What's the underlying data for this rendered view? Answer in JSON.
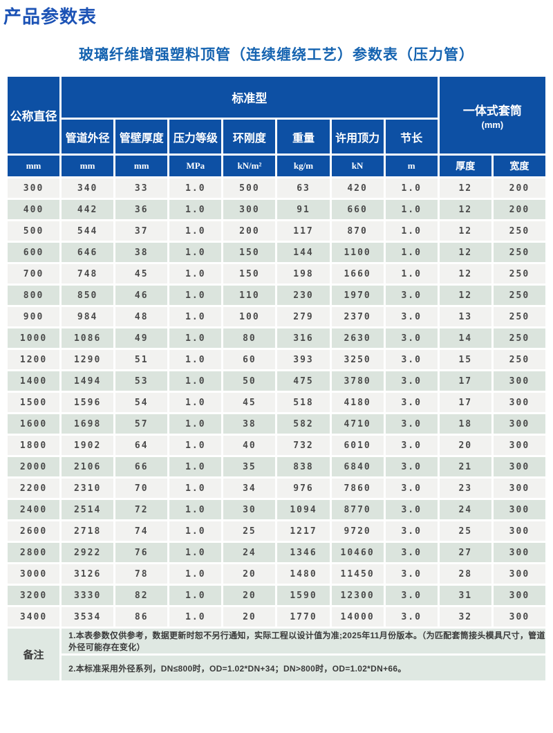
{
  "page": {
    "title": "产品参数表",
    "subtitle": "玻璃纤维增强塑料顶管（连续缠绕工艺）参数表（压力管）"
  },
  "colors": {
    "header_blue": "#0d50a4",
    "title_blue": "#1b52b5",
    "subtitle_blue": "#1563b0",
    "row_light": "#f2f2f0",
    "row_green": "#dbe4dd",
    "remarks_green": "#dfe8e2"
  },
  "chart_data": {
    "type": "table",
    "header": {
      "col_nominal_diameter": "公称直径",
      "group_standard": "标准型",
      "group_sleeve": "一体式套筒",
      "group_sleeve_unit": "(mm)",
      "sub_headers": [
        "管道外径",
        "管壁厚度",
        "压力等级",
        "环刚度",
        "重量",
        "许用顶力",
        "节长"
      ],
      "units": [
        "mm",
        "mm",
        "mm",
        "MPa",
        "kN/m²",
        "kg/m",
        "kN",
        "m",
        "厚度",
        "宽度"
      ]
    },
    "rows": [
      [
        "300",
        "340",
        "33",
        "1.0",
        "500",
        "63",
        "420",
        "1.0",
        "12",
        "200"
      ],
      [
        "400",
        "442",
        "36",
        "1.0",
        "300",
        "91",
        "660",
        "1.0",
        "12",
        "200"
      ],
      [
        "500",
        "544",
        "37",
        "1.0",
        "200",
        "117",
        "870",
        "1.0",
        "12",
        "250"
      ],
      [
        "600",
        "646",
        "38",
        "1.0",
        "150",
        "144",
        "1100",
        "1.0",
        "12",
        "250"
      ],
      [
        "700",
        "748",
        "45",
        "1.0",
        "150",
        "198",
        "1660",
        "1.0",
        "12",
        "250"
      ],
      [
        "800",
        "850",
        "46",
        "1.0",
        "110",
        "230",
        "1970",
        "3.0",
        "12",
        "250"
      ],
      [
        "900",
        "984",
        "48",
        "1.0",
        "100",
        "279",
        "2370",
        "3.0",
        "13",
        "250"
      ],
      [
        "1000",
        "1086",
        "49",
        "1.0",
        "80",
        "316",
        "2630",
        "3.0",
        "14",
        "250"
      ],
      [
        "1200",
        "1290",
        "51",
        "1.0",
        "60",
        "393",
        "3250",
        "3.0",
        "15",
        "250"
      ],
      [
        "1400",
        "1494",
        "53",
        "1.0",
        "50",
        "475",
        "3780",
        "3.0",
        "17",
        "300"
      ],
      [
        "1500",
        "1596",
        "54",
        "1.0",
        "45",
        "518",
        "4180",
        "3.0",
        "17",
        "300"
      ],
      [
        "1600",
        "1698",
        "57",
        "1.0",
        "38",
        "582",
        "4710",
        "3.0",
        "18",
        "300"
      ],
      [
        "1800",
        "1902",
        "64",
        "1.0",
        "40",
        "732",
        "6010",
        "3.0",
        "20",
        "300"
      ],
      [
        "2000",
        "2106",
        "66",
        "1.0",
        "35",
        "838",
        "6840",
        "3.0",
        "21",
        "300"
      ],
      [
        "2200",
        "2310",
        "70",
        "1.0",
        "34",
        "976",
        "7860",
        "3.0",
        "23",
        "300"
      ],
      [
        "2400",
        "2514",
        "72",
        "1.0",
        "30",
        "1094",
        "8770",
        "3.0",
        "24",
        "300"
      ],
      [
        "2600",
        "2718",
        "74",
        "1.0",
        "25",
        "1217",
        "9720",
        "3.0",
        "25",
        "300"
      ],
      [
        "2800",
        "2922",
        "76",
        "1.0",
        "24",
        "1346",
        "10460",
        "3.0",
        "27",
        "300"
      ],
      [
        "3000",
        "3126",
        "78",
        "1.0",
        "20",
        "1480",
        "11450",
        "3.0",
        "28",
        "300"
      ],
      [
        "3200",
        "3330",
        "82",
        "1.0",
        "20",
        "1590",
        "12300",
        "3.0",
        "31",
        "300"
      ],
      [
        "3400",
        "3534",
        "86",
        "1.0",
        "20",
        "1770",
        "14000",
        "3.0",
        "32",
        "300"
      ]
    ],
    "remarks": {
      "label": "备注",
      "notes": [
        "1.本表参数仅供参考，数据更新时恕不另行通知，实际工程以设计值为准;2025年11月份版本。（为匹配套筒接头模具尺寸，管道外径可能存在变化）",
        "2.本标准采用外径系列，DN≤800时，OD=1.02*DN+34；DN>800时，OD=1.02*DN+66。"
      ]
    }
  }
}
